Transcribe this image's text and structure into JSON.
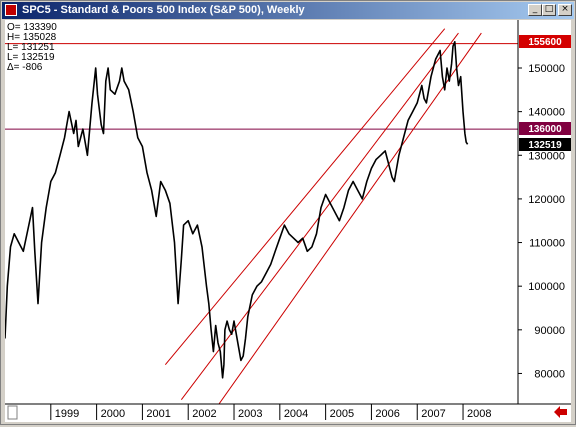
{
  "window": {
    "title": "SPC5 - Standard & Poors 500 Index (S&P 500), Weekly",
    "btn_min": "_",
    "btn_max": "□",
    "btn_close": "×"
  },
  "readout": {
    "open": "O=  133390",
    "high": "H=  135028",
    "low1": "L=  131251",
    "low2": "L=  132519",
    "delta": "Δ=     -806"
  },
  "price_tags": {
    "upper": "155600",
    "middle": "136000",
    "last": "132519"
  },
  "colors": {
    "price_line": "#000000",
    "horizontal_resistance": "#cc0000",
    "horizontal_support": "#800040",
    "channel": "#cc0000",
    "tag_red": "#d40000",
    "tag_maroon": "#800040",
    "tag_black": "#000000",
    "nav_arrow": "#cc0000"
  },
  "chart_data": {
    "type": "line",
    "y_ticks": [
      80000,
      90000,
      100000,
      110000,
      120000,
      130000,
      140000,
      150000
    ],
    "y_tick_labels": [
      "80000",
      "90000",
      "100000",
      "110000",
      "120000",
      "130000",
      "140000",
      "150000"
    ],
    "x_tick_labels": [
      "1999",
      "2000",
      "2001",
      "2002",
      "2003",
      "2004",
      "2005",
      "2006",
      "2007",
      "2008"
    ],
    "x_ticks": [
      1999,
      2000,
      2001,
      2002,
      2003,
      2004,
      2005,
      2006,
      2007,
      2008
    ],
    "xlim": [
      1998.0,
      2009.2
    ],
    "ylim": [
      73000,
      161000
    ],
    "horizontal_lines": [
      155600,
      136000
    ],
    "series": [
      {
        "x": [
          1998.0,
          1998.05,
          1998.12,
          1998.2,
          1998.3,
          1998.4,
          1998.5,
          1998.6,
          1998.65,
          1998.72,
          1998.8,
          1998.9,
          1999.0,
          1999.1,
          1999.2,
          1999.3,
          1999.4,
          1999.5,
          1999.55,
          1999.6,
          1999.7,
          1999.8,
          1999.9,
          1999.98,
          2000.02,
          2000.1,
          2000.15,
          2000.2,
          2000.25,
          2000.3,
          2000.4,
          2000.5,
          2000.55,
          2000.6,
          2000.7,
          2000.8,
          2000.9,
          2001.0,
          2001.1,
          2001.2,
          2001.3,
          2001.4,
          2001.5,
          2001.6,
          2001.7,
          2001.78,
          2001.85,
          2001.9,
          2002.0,
          2002.1,
          2002.2,
          2002.3,
          2002.4,
          2002.45,
          2002.5,
          2002.55,
          2002.6,
          2002.65,
          2002.7,
          2002.75,
          2002.78,
          2002.8,
          2002.85,
          2002.9,
          2002.95,
          2003.0,
          2003.1,
          2003.15,
          2003.2,
          2003.25,
          2003.3,
          2003.4,
          2003.5,
          2003.6,
          2003.7,
          2003.8,
          2003.9,
          2004.0,
          2004.1,
          2004.2,
          2004.3,
          2004.4,
          2004.5,
          2004.6,
          2004.7,
          2004.8,
          2004.9,
          2005.0,
          2005.1,
          2005.2,
          2005.3,
          2005.4,
          2005.5,
          2005.6,
          2005.7,
          2005.8,
          2005.9,
          2006.0,
          2006.1,
          2006.2,
          2006.3,
          2006.4,
          2006.45,
          2006.5,
          2006.55,
          2006.6,
          2006.7,
          2006.8,
          2006.9,
          2007.0,
          2007.1,
          2007.15,
          2007.2,
          2007.3,
          2007.4,
          2007.5,
          2007.55,
          2007.6,
          2007.65,
          2007.7,
          2007.75,
          2007.78,
          2007.82,
          2007.86,
          2007.9,
          2007.95,
          2008.0,
          2008.04,
          2008.07,
          2008.1
        ],
        "y": [
          88000,
          100000,
          109000,
          112000,
          110000,
          108000,
          113000,
          118000,
          108000,
          96000,
          110000,
          118000,
          124000,
          126000,
          130000,
          134000,
          140000,
          135000,
          138000,
          132000,
          136000,
          130000,
          142000,
          150000,
          144000,
          137000,
          135000,
          147000,
          150000,
          145000,
          144000,
          147000,
          150000,
          147000,
          145000,
          140000,
          134000,
          132000,
          126000,
          122000,
          116000,
          124000,
          122000,
          119000,
          110000,
          96000,
          106000,
          114000,
          115000,
          112000,
          114000,
          109000,
          100000,
          96000,
          90000,
          85000,
          91000,
          87000,
          85000,
          79000,
          82000,
          90000,
          92000,
          90000,
          89000,
          92000,
          86000,
          83000,
          84000,
          88000,
          93000,
          98000,
          100000,
          101000,
          103000,
          105000,
          108000,
          111000,
          114000,
          112000,
          111000,
          110000,
          111000,
          108000,
          109000,
          112000,
          118000,
          121000,
          119000,
          117000,
          115000,
          118000,
          122000,
          124000,
          122000,
          120000,
          124000,
          127000,
          129000,
          130000,
          131000,
          127000,
          125000,
          124000,
          127000,
          130000,
          134000,
          138000,
          140000,
          142000,
          146000,
          143000,
          142000,
          148000,
          152000,
          154000,
          148000,
          145000,
          150000,
          147000,
          151000,
          155000,
          156000,
          150000,
          146000,
          148000,
          140000,
          135000,
          133000,
          132519
        ]
      }
    ],
    "channel_lines": [
      {
        "from": [
          2001.5,
          82000
        ],
        "to": [
          2007.6,
          159000
        ]
      },
      {
        "from": [
          2001.85,
          74000
        ],
        "to": [
          2007.9,
          158000
        ]
      },
      {
        "from": [
          2002.2,
          66000
        ],
        "to": [
          2008.4,
          158000
        ]
      }
    ]
  }
}
